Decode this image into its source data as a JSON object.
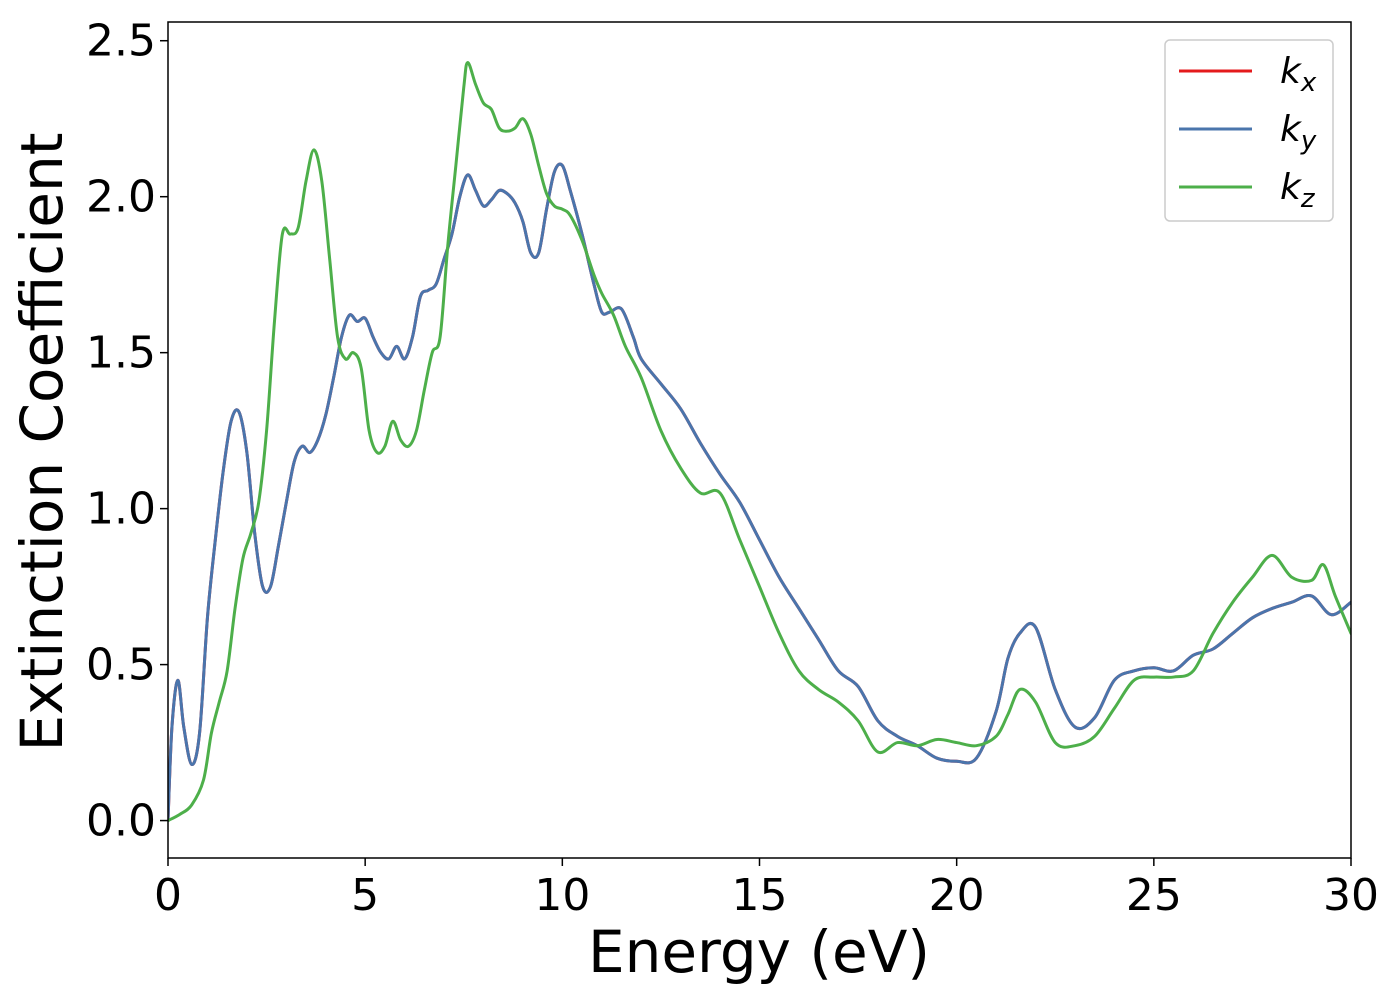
{
  "chart_data": {
    "type": "line",
    "xlabel": "Energy (eV)",
    "ylabel": "Extinction Coefficient",
    "xlim": [
      0,
      30
    ],
    "ylim": [
      -0.12,
      2.56
    ],
    "xticks": [
      0,
      5,
      10,
      15,
      20,
      25,
      30
    ],
    "xtick_labels": [
      "0",
      "5",
      "10",
      "15",
      "20",
      "25",
      "30"
    ],
    "yticks": [
      0.0,
      0.5,
      1.0,
      1.5,
      2.0,
      2.5
    ],
    "ytick_labels": [
      "0.0",
      "0.5",
      "1.0",
      "1.5",
      "2.0",
      "2.5"
    ],
    "grid": false,
    "legend_position": "top-right",
    "series": [
      {
        "name": "k",
        "subscript": "x",
        "color": "#e41a1c",
        "x": [
          0,
          0.1,
          0.25,
          0.4,
          0.6,
          0.8,
          1.0,
          1.2,
          1.4,
          1.6,
          1.8,
          2.0,
          2.2,
          2.4,
          2.6,
          2.8,
          3.0,
          3.2,
          3.4,
          3.6,
          3.8,
          4.0,
          4.2,
          4.4,
          4.6,
          4.8,
          5.0,
          5.2,
          5.4,
          5.6,
          5.8,
          6.0,
          6.2,
          6.4,
          6.6,
          6.8,
          7.0,
          7.2,
          7.4,
          7.6,
          7.8,
          8.0,
          8.2,
          8.4,
          8.6,
          8.8,
          9.0,
          9.2,
          9.4,
          9.6,
          9.8,
          10.0,
          10.2,
          10.5,
          10.8,
          11.0,
          11.2,
          11.5,
          11.8,
          12.0,
          12.5,
          13.0,
          13.5,
          14.0,
          14.5,
          15.0,
          15.5,
          16.0,
          16.5,
          17.0,
          17.5,
          18.0,
          18.5,
          19.0,
          19.5,
          20.0,
          20.5,
          21.0,
          21.3,
          21.6,
          22.0,
          22.5,
          23.0,
          23.5,
          24.0,
          24.5,
          25.0,
          25.5,
          26.0,
          26.5,
          27.0,
          27.5,
          28.0,
          28.5,
          29.0,
          29.5,
          30.0
        ],
        "y": [
          0,
          0.3,
          0.45,
          0.3,
          0.18,
          0.28,
          0.65,
          0.9,
          1.12,
          1.28,
          1.31,
          1.18,
          0.92,
          0.75,
          0.75,
          0.88,
          1.02,
          1.15,
          1.2,
          1.18,
          1.22,
          1.3,
          1.42,
          1.55,
          1.62,
          1.6,
          1.61,
          1.55,
          1.5,
          1.48,
          1.52,
          1.48,
          1.55,
          1.68,
          1.7,
          1.72,
          1.8,
          1.88,
          2.0,
          2.07,
          2.02,
          1.97,
          1.99,
          2.02,
          2.01,
          1.98,
          1.92,
          1.82,
          1.82,
          1.96,
          2.08,
          2.1,
          2.02,
          1.88,
          1.72,
          1.63,
          1.63,
          1.64,
          1.55,
          1.48,
          1.4,
          1.32,
          1.21,
          1.11,
          1.02,
          0.9,
          0.78,
          0.68,
          0.58,
          0.48,
          0.43,
          0.32,
          0.27,
          0.24,
          0.2,
          0.19,
          0.2,
          0.35,
          0.52,
          0.6,
          0.62,
          0.42,
          0.3,
          0.33,
          0.45,
          0.48,
          0.49,
          0.48,
          0.53,
          0.55,
          0.6,
          0.65,
          0.68,
          0.7,
          0.72,
          0.66,
          0.7
        ]
      },
      {
        "name": "k",
        "subscript": "y",
        "color": "#4a75ac",
        "x": [
          0,
          0.1,
          0.25,
          0.4,
          0.6,
          0.8,
          1.0,
          1.2,
          1.4,
          1.6,
          1.8,
          2.0,
          2.2,
          2.4,
          2.6,
          2.8,
          3.0,
          3.2,
          3.4,
          3.6,
          3.8,
          4.0,
          4.2,
          4.4,
          4.6,
          4.8,
          5.0,
          5.2,
          5.4,
          5.6,
          5.8,
          6.0,
          6.2,
          6.4,
          6.6,
          6.8,
          7.0,
          7.2,
          7.4,
          7.6,
          7.8,
          8.0,
          8.2,
          8.4,
          8.6,
          8.8,
          9.0,
          9.2,
          9.4,
          9.6,
          9.8,
          10.0,
          10.2,
          10.5,
          10.8,
          11.0,
          11.2,
          11.5,
          11.8,
          12.0,
          12.5,
          13.0,
          13.5,
          14.0,
          14.5,
          15.0,
          15.5,
          16.0,
          16.5,
          17.0,
          17.5,
          18.0,
          18.5,
          19.0,
          19.5,
          20.0,
          20.5,
          21.0,
          21.3,
          21.6,
          22.0,
          22.5,
          23.0,
          23.5,
          24.0,
          24.5,
          25.0,
          25.5,
          26.0,
          26.5,
          27.0,
          27.5,
          28.0,
          28.5,
          29.0,
          29.5,
          30.0
        ],
        "y": [
          0,
          0.3,
          0.45,
          0.3,
          0.18,
          0.28,
          0.65,
          0.9,
          1.12,
          1.28,
          1.31,
          1.18,
          0.92,
          0.75,
          0.75,
          0.88,
          1.02,
          1.15,
          1.2,
          1.18,
          1.22,
          1.3,
          1.42,
          1.55,
          1.62,
          1.6,
          1.61,
          1.55,
          1.5,
          1.48,
          1.52,
          1.48,
          1.55,
          1.68,
          1.7,
          1.72,
          1.8,
          1.88,
          2.0,
          2.07,
          2.02,
          1.97,
          1.99,
          2.02,
          2.01,
          1.98,
          1.92,
          1.82,
          1.82,
          1.96,
          2.08,
          2.1,
          2.02,
          1.88,
          1.72,
          1.63,
          1.63,
          1.64,
          1.55,
          1.48,
          1.4,
          1.32,
          1.21,
          1.11,
          1.02,
          0.9,
          0.78,
          0.68,
          0.58,
          0.48,
          0.43,
          0.32,
          0.27,
          0.24,
          0.2,
          0.19,
          0.2,
          0.35,
          0.52,
          0.6,
          0.62,
          0.42,
          0.3,
          0.33,
          0.45,
          0.48,
          0.49,
          0.48,
          0.53,
          0.55,
          0.6,
          0.65,
          0.68,
          0.7,
          0.72,
          0.66,
          0.7
        ]
      },
      {
        "name": "k",
        "subscript": "z",
        "color": "#4daf4a",
        "x": [
          0,
          0.3,
          0.6,
          0.9,
          1.1,
          1.3,
          1.5,
          1.7,
          1.9,
          2.1,
          2.3,
          2.5,
          2.7,
          2.9,
          3.1,
          3.3,
          3.5,
          3.7,
          3.9,
          4.1,
          4.3,
          4.5,
          4.7,
          4.9,
          5.1,
          5.3,
          5.5,
          5.7,
          5.9,
          6.1,
          6.3,
          6.5,
          6.7,
          6.9,
          7.1,
          7.3,
          7.5,
          7.6,
          7.8,
          8.0,
          8.2,
          8.4,
          8.6,
          8.8,
          9.0,
          9.2,
          9.4,
          9.6,
          9.8,
          10.0,
          10.2,
          10.5,
          10.8,
          11.0,
          11.3,
          11.6,
          12.0,
          12.5,
          13.0,
          13.5,
          14.0,
          14.5,
          15.0,
          15.5,
          16.0,
          16.5,
          17.0,
          17.5,
          18.0,
          18.5,
          19.0,
          19.5,
          20.0,
          20.5,
          21.0,
          21.3,
          21.6,
          22.0,
          22.5,
          23.0,
          23.5,
          24.0,
          24.5,
          25.0,
          25.5,
          26.0,
          26.5,
          27.0,
          27.5,
          28.0,
          28.5,
          29.0,
          29.3,
          29.6,
          30.0
        ],
        "y": [
          0,
          0.02,
          0.05,
          0.13,
          0.28,
          0.38,
          0.48,
          0.68,
          0.84,
          0.92,
          1.02,
          1.25,
          1.6,
          1.88,
          1.88,
          1.9,
          2.05,
          2.15,
          2.05,
          1.8,
          1.55,
          1.48,
          1.5,
          1.45,
          1.25,
          1.18,
          1.2,
          1.28,
          1.22,
          1.2,
          1.25,
          1.38,
          1.5,
          1.55,
          1.85,
          2.1,
          2.35,
          2.43,
          2.36,
          2.3,
          2.28,
          2.22,
          2.21,
          2.22,
          2.25,
          2.2,
          2.1,
          2.01,
          1.97,
          1.96,
          1.94,
          1.86,
          1.75,
          1.69,
          1.62,
          1.52,
          1.42,
          1.25,
          1.13,
          1.05,
          1.05,
          0.9,
          0.75,
          0.6,
          0.48,
          0.42,
          0.38,
          0.32,
          0.22,
          0.25,
          0.24,
          0.26,
          0.25,
          0.24,
          0.27,
          0.34,
          0.42,
          0.38,
          0.25,
          0.24,
          0.27,
          0.36,
          0.45,
          0.46,
          0.46,
          0.48,
          0.6,
          0.7,
          0.78,
          0.85,
          0.78,
          0.77,
          0.82,
          0.72,
          0.6
        ]
      }
    ]
  }
}
